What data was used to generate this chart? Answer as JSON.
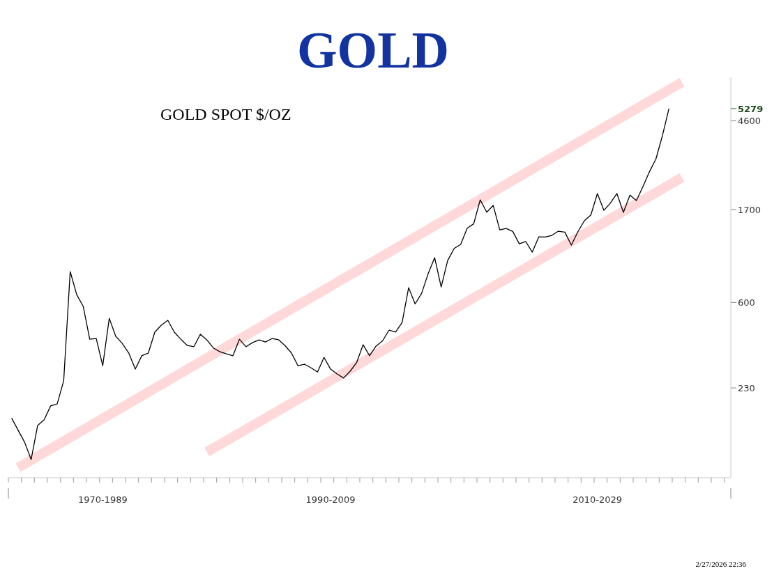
{
  "chart_data": {
    "type": "line",
    "title": "GOLD",
    "subtitle": "GOLD SPOT $/OZ",
    "log": true,
    "categories": [
      null,
      null,
      null,
      null,
      null,
      null,
      null,
      null,
      null,
      null,
      null,
      null,
      null,
      null,
      "1970-1989",
      null,
      null,
      null,
      null,
      null,
      null,
      null,
      null,
      null,
      null,
      null,
      null,
      null,
      null,
      null,
      null,
      null,
      null,
      null,
      null,
      null,
      null,
      null,
      null,
      null,
      null,
      null,
      null,
      null,
      null,
      null,
      null,
      null,
      null,
      "1990-2009",
      null,
      null,
      null,
      null,
      null,
      null,
      null,
      null,
      null,
      null,
      null,
      null,
      null,
      null,
      null,
      null,
      null,
      null,
      null,
      null,
      null,
      null,
      null,
      null,
      null,
      null,
      null,
      null,
      null,
      null,
      null,
      null,
      null,
      null,
      null,
      null,
      null,
      null,
      null,
      null,
      "2010-2029",
      null,
      null,
      null,
      null,
      null,
      null,
      null,
      null,
      null,
      null,
      null,
      null,
      null,
      null,
      null,
      null,
      null,
      null,
      null,
      null
    ],
    "ylim": [
      84,
      7500
    ],
    "yticks": [
      230,
      600,
      1700,
      4600,
      5279
    ],
    "annotations": [
      "2/27/2026 22:36"
    ],
    "series": [
      {
        "type": "line",
        "color": "#ffd9d9",
        "values": [
          null,
          94,
          null,
          null,
          null,
          null,
          null,
          null,
          null,
          null,
          null,
          null,
          null,
          null,
          null,
          null,
          null,
          null,
          null,
          null,
          null,
          null,
          null,
          null,
          null,
          null,
          null,
          null,
          null,
          null,
          null,
          null,
          null,
          null,
          null,
          null,
          null,
          null,
          null,
          null,
          null,
          null,
          null,
          null,
          null,
          null,
          null,
          null,
          null,
          null,
          null,
          null,
          null,
          null,
          null,
          null,
          null,
          null,
          null,
          null,
          null,
          null,
          null,
          null,
          null,
          null,
          null,
          null,
          null,
          null,
          null,
          null,
          null,
          null,
          null,
          null,
          null,
          null,
          null,
          null,
          null,
          null,
          null,
          null,
          null,
          null,
          null,
          null,
          null,
          null,
          null,
          null,
          null,
          null,
          null,
          null,
          null,
          null,
          null,
          null,
          null,
          null,
          null,
          7100,
          null,
          null,
          null,
          null,
          null,
          null,
          null
        ]
      },
      {
        "type": "line",
        "color": "#ffd9d9",
        "values": [
          null,
          null,
          null,
          null,
          null,
          null,
          null,
          null,
          null,
          null,
          null,
          null,
          null,
          null,
          null,
          null,
          null,
          null,
          null,
          null,
          null,
          null,
          null,
          null,
          null,
          null,
          null,
          null,
          null,
          null,
          112,
          null,
          null,
          null,
          null,
          null,
          null,
          null,
          null,
          null,
          null,
          null,
          null,
          null,
          null,
          null,
          null,
          null,
          null,
          null,
          null,
          null,
          null,
          null,
          null,
          null,
          null,
          null,
          null,
          null,
          null,
          null,
          null,
          null,
          null,
          null,
          null,
          null,
          null,
          null,
          null,
          null,
          null,
          null,
          null,
          null,
          null,
          null,
          null,
          null,
          null,
          null,
          null,
          null,
          null,
          null,
          null,
          null,
          null,
          null,
          null,
          null,
          null,
          null,
          null,
          null,
          null,
          null,
          null,
          null,
          null,
          null,
          null,
          2437,
          null,
          null,
          null,
          null,
          null,
          null,
          null
        ]
      },
      {
        "color": "#000000",
        "values": [
          164,
          143,
          125,
          103,
          151,
          161,
          188,
          192,
          249,
          848,
          655,
          574,
          397,
          400,
          295,
          502,
          410,
          379,
          340,
          284,
          330,
          340,
          430,
          465,
          491,
          430,
          397,
          370,
          365,
          420,
          394,
          360,
          345,
          337,
          330,
          397,
          365,
          382,
          394,
          385,
          400,
          395,
          370,
          340,
          295,
          300,
          288,
          275,
          324,
          284,
          269,
          257,
          277,
          305,
          373,
          330,
          368,
          390,
          440,
          430,
          479,
          708,
          590,
          665,
          828,
          991,
          714,
          960,
          1100,
          1150,
          1380,
          1450,
          1896,
          1650,
          1781,
          1354,
          1376,
          1330,
          1158,
          1187,
          1055,
          1252,
          1250,
          1273,
          1334,
          1320,
          1141,
          1324,
          1500,
          1600,
          2035,
          1686,
          1830,
          2035,
          1647,
          2000,
          1882,
          2200,
          2600,
          3000,
          3900,
          5279,
          null,
          null,
          null,
          null,
          null,
          null,
          null,
          null,
          null
        ]
      }
    ]
  }
}
